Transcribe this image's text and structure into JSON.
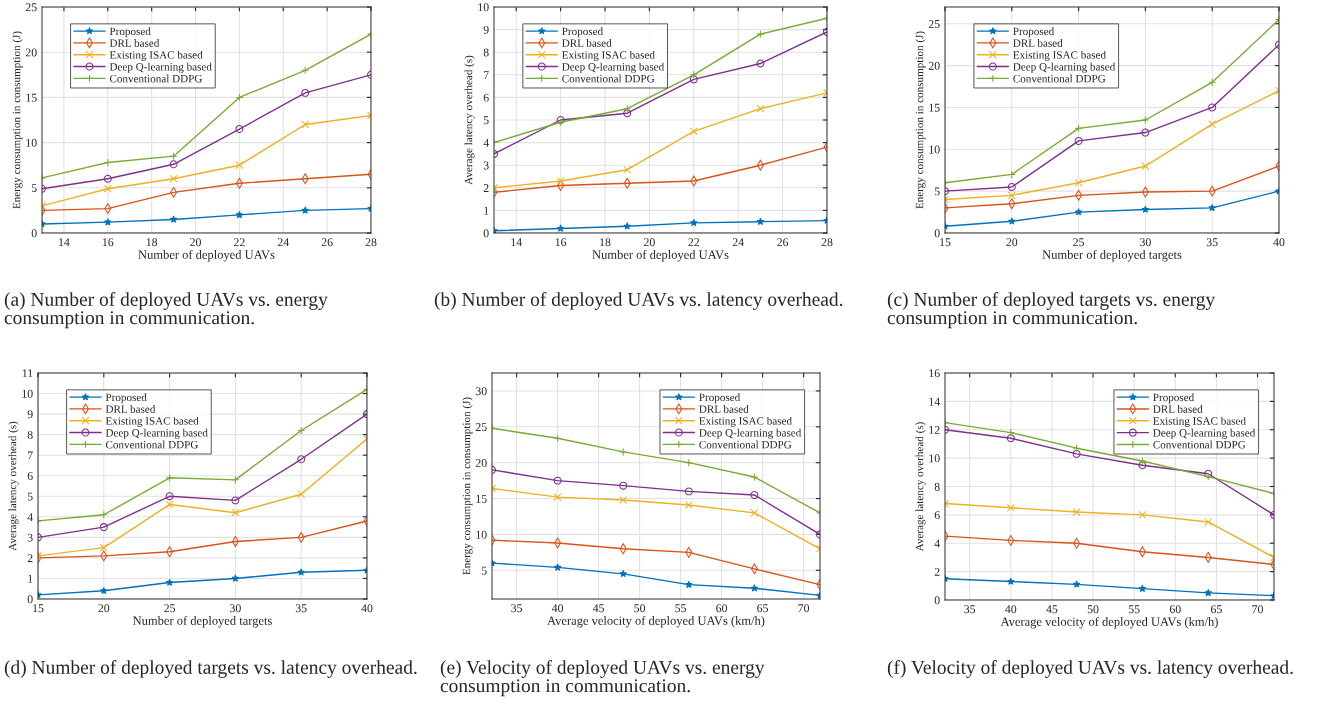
{
  "chart_data": [
    {
      "type": "line",
      "xlabel": "Number of deployed UAVs",
      "ylabel": "Energy consumption in consumption (J)",
      "x": [
        13,
        16,
        19,
        22,
        25,
        28
      ],
      "xlim": [
        13,
        28
      ],
      "xticks": [
        14,
        16,
        18,
        20,
        22,
        24,
        26,
        28
      ],
      "ylim": [
        0,
        25
      ],
      "yticks": [
        0,
        5,
        10,
        15,
        20,
        25
      ],
      "grid": true,
      "legend": "top left",
      "line_style": "solid",
      "annotations": [
        "(a) Number of deployed UAVs vs. energy consumption in communication."
      ],
      "series": [
        {
          "name": "Proposed",
          "color": "#0072bd",
          "marker": "star",
          "values": [
            1.0,
            1.2,
            1.5,
            2.0,
            2.5,
            2.7
          ]
        },
        {
          "name": "DRL based",
          "color": "#d95319",
          "marker": "diamond",
          "values": [
            2.5,
            2.7,
            4.5,
            5.5,
            6.0,
            6.5
          ]
        },
        {
          "name": "Existing ISAC based",
          "color": "#edb120",
          "marker": "cross",
          "values": [
            3.0,
            4.9,
            6.0,
            7.5,
            12.0,
            13.0
          ]
        },
        {
          "name": "Deep Q-learning based",
          "color": "#7e2f8e",
          "marker": "circle",
          "values": [
            4.9,
            6.0,
            7.6,
            11.5,
            15.5,
            17.5
          ]
        },
        {
          "name": "Conventional DDPG",
          "color": "#77ac30",
          "marker": "plus",
          "values": [
            6.1,
            7.8,
            8.5,
            15.0,
            18.0,
            22.0
          ]
        }
      ]
    },
    {
      "type": "line",
      "xlabel": "Number of deployed UAVs",
      "ylabel": "Average latency overhead (s)",
      "x": [
        13,
        16,
        19,
        22,
        25,
        28
      ],
      "xlim": [
        13,
        28
      ],
      "xticks": [
        14,
        16,
        18,
        20,
        22,
        24,
        26,
        28
      ],
      "ylim": [
        0,
        10
      ],
      "yticks": [
        0,
        1,
        2,
        3,
        4,
        5,
        6,
        7,
        8,
        9,
        10
      ],
      "grid": true,
      "legend": "top left",
      "line_style": "solid",
      "annotations": [
        "(b) Number of deployed UAVs vs. latency overhead."
      ],
      "series": [
        {
          "name": "Proposed",
          "color": "#0072bd",
          "marker": "star",
          "values": [
            0.1,
            0.2,
            0.3,
            0.45,
            0.5,
            0.55
          ]
        },
        {
          "name": "DRL based",
          "color": "#d95319",
          "marker": "diamond",
          "values": [
            1.8,
            2.1,
            2.2,
            2.3,
            3.0,
            3.8
          ]
        },
        {
          "name": "Existing ISAC based",
          "color": "#edb120",
          "marker": "cross",
          "values": [
            2.0,
            2.3,
            2.8,
            4.5,
            5.5,
            6.2
          ]
        },
        {
          "name": "Deep Q-learning based",
          "color": "#7e2f8e",
          "marker": "circle",
          "values": [
            3.5,
            5.0,
            5.3,
            6.8,
            7.5,
            8.9
          ]
        },
        {
          "name": "Conventional DDPG",
          "color": "#77ac30",
          "marker": "plus",
          "values": [
            4.0,
            4.9,
            5.5,
            7.0,
            8.8,
            9.5
          ]
        }
      ]
    },
    {
      "type": "line",
      "xlabel": "Number of deployed targets",
      "ylabel": "Energy consumption in consumption (J)",
      "x": [
        15,
        20,
        25,
        30,
        35,
        40
      ],
      "xlim": [
        15,
        40
      ],
      "xticks": [
        15,
        20,
        25,
        30,
        35,
        40
      ],
      "ylim": [
        0,
        27
      ],
      "yticks": [
        0,
        5,
        10,
        15,
        20,
        25
      ],
      "grid": true,
      "legend": "top left",
      "line_style": "solid",
      "annotations": [
        "(c) Number of deployed targets vs. energy consumption in communication."
      ],
      "series": [
        {
          "name": "Proposed",
          "color": "#0072bd",
          "marker": "star",
          "values": [
            0.8,
            1.4,
            2.5,
            2.8,
            3.0,
            5.0
          ]
        },
        {
          "name": "DRL based",
          "color": "#d95319",
          "marker": "diamond",
          "values": [
            3.0,
            3.5,
            4.5,
            4.9,
            5.0,
            8.0
          ]
        },
        {
          "name": "Existing ISAC based",
          "color": "#edb120",
          "marker": "cross",
          "values": [
            4.0,
            4.5,
            6.0,
            8.0,
            13.0,
            17.0
          ]
        },
        {
          "name": "Deep Q-learning based",
          "color": "#7e2f8e",
          "marker": "circle",
          "values": [
            5.0,
            5.5,
            11.0,
            12.0,
            15.0,
            22.5
          ]
        },
        {
          "name": "Conventional DDPG",
          "color": "#77ac30",
          "marker": "plus",
          "values": [
            6.0,
            7.0,
            12.5,
            13.5,
            18.0,
            25.5
          ]
        }
      ]
    },
    {
      "type": "line",
      "xlabel": "Number of deployed targets",
      "ylabel": "Average latency overhead (s)",
      "x": [
        15,
        20,
        25,
        30,
        35,
        40
      ],
      "xlim": [
        15,
        40
      ],
      "xticks": [
        15,
        20,
        25,
        30,
        35,
        40
      ],
      "ylim": [
        0,
        11
      ],
      "yticks": [
        0,
        1,
        2,
        3,
        4,
        5,
        6,
        7,
        8,
        9,
        10,
        11
      ],
      "grid": true,
      "legend": "top left",
      "line_style": "solid",
      "annotations": [
        "(d) Number of deployed targets vs. latency overhead."
      ],
      "series": [
        {
          "name": "Proposed",
          "color": "#0072bd",
          "marker": "star",
          "values": [
            0.2,
            0.4,
            0.8,
            1.0,
            1.3,
            1.4
          ]
        },
        {
          "name": "DRL based",
          "color": "#d95319",
          "marker": "diamond",
          "values": [
            2.0,
            2.1,
            2.3,
            2.8,
            3.0,
            3.8
          ]
        },
        {
          "name": "Existing ISAC based",
          "color": "#edb120",
          "marker": "cross",
          "values": [
            2.1,
            2.5,
            4.6,
            4.2,
            5.1,
            7.8
          ]
        },
        {
          "name": "Deep Q-learning based",
          "color": "#7e2f8e",
          "marker": "circle",
          "values": [
            3.0,
            3.5,
            5.0,
            4.8,
            6.8,
            9.0
          ]
        },
        {
          "name": "Conventional DDPG",
          "color": "#77ac30",
          "marker": "plus",
          "values": [
            3.8,
            4.1,
            5.9,
            5.8,
            8.2,
            10.2
          ]
        }
      ]
    },
    {
      "type": "line",
      "xlabel": "Average velocity of deployed UAVs (km/h)",
      "ylabel": "Energy consumption in consumption (J)",
      "x": [
        32,
        40,
        48,
        56,
        64,
        72
      ],
      "xlim": [
        32,
        72
      ],
      "xticks": [
        35,
        40,
        45,
        50,
        55,
        60,
        65,
        70
      ],
      "ylim": [
        1,
        32.5
      ],
      "yticks": [
        5,
        10,
        15,
        20,
        25,
        30
      ],
      "grid": true,
      "legend": "top right",
      "line_style": "solid",
      "annotations": [
        "(e) Velocity of deployed UAVs vs. energy consumption in communication."
      ],
      "series": [
        {
          "name": "Proposed",
          "color": "#0072bd",
          "marker": "star",
          "values": [
            6.0,
            5.4,
            4.5,
            3.0,
            2.5,
            1.5
          ]
        },
        {
          "name": "DRL based",
          "color": "#d95319",
          "marker": "diamond",
          "values": [
            9.2,
            8.8,
            8.0,
            7.5,
            5.2,
            3.0
          ]
        },
        {
          "name": "Existing ISAC based",
          "color": "#edb120",
          "marker": "cross",
          "values": [
            16.4,
            15.2,
            14.8,
            14.1,
            13.0,
            8.0
          ]
        },
        {
          "name": "Deep Q-learning based",
          "color": "#7e2f8e",
          "marker": "circle",
          "values": [
            19.0,
            17.5,
            16.8,
            16.0,
            15.5,
            10.0
          ]
        },
        {
          "name": "Conventional DDPG",
          "color": "#77ac30",
          "marker": "plus",
          "values": [
            24.8,
            23.4,
            21.5,
            20.0,
            18.0,
            13.0
          ]
        }
      ]
    },
    {
      "type": "line",
      "xlabel": "Average velocity of deployed UAVs (km/h)",
      "ylabel": "Average latency overhead (s)",
      "x": [
        32,
        40,
        48,
        56,
        64,
        72
      ],
      "xlim": [
        32,
        72
      ],
      "xticks": [
        35,
        40,
        45,
        50,
        55,
        60,
        65,
        70
      ],
      "ylim": [
        0,
        16
      ],
      "yticks": [
        0,
        2,
        4,
        6,
        8,
        10,
        12,
        14,
        16
      ],
      "grid": true,
      "legend": "top right",
      "line_style": "solid",
      "annotations": [
        "(f) Velocity of deployed UAVs vs. latency overhead."
      ],
      "series": [
        {
          "name": "Proposed",
          "color": "#0072bd",
          "marker": "star",
          "values": [
            1.5,
            1.3,
            1.1,
            0.8,
            0.5,
            0.3
          ]
        },
        {
          "name": "DRL based",
          "color": "#d95319",
          "marker": "diamond",
          "values": [
            4.5,
            4.2,
            4.0,
            3.4,
            3.0,
            2.5
          ]
        },
        {
          "name": "Existing ISAC based",
          "color": "#edb120",
          "marker": "cross",
          "values": [
            6.8,
            6.5,
            6.2,
            6.0,
            5.5,
            3.0
          ]
        },
        {
          "name": "Deep Q-learning based",
          "color": "#7e2f8e",
          "marker": "circle",
          "values": [
            12.0,
            11.4,
            10.3,
            9.5,
            8.9,
            6.0
          ]
        },
        {
          "name": "Conventional DDPG",
          "color": "#77ac30",
          "marker": "plus",
          "values": [
            12.5,
            11.8,
            10.7,
            9.8,
            8.7,
            7.5
          ]
        }
      ]
    }
  ]
}
